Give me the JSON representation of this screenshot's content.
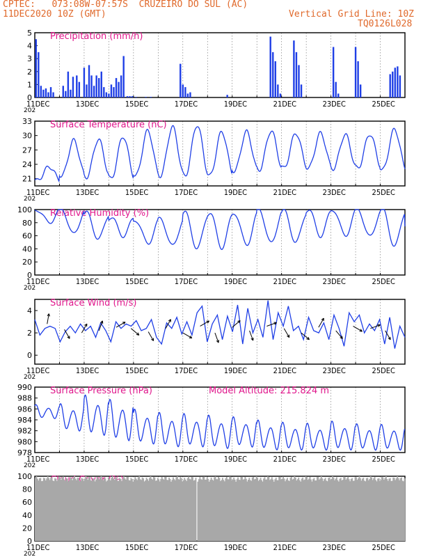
{
  "header": {
    "line1_left": "CPTEC:   073:08W-07:57S  CRUZEIRO DO SUL (AC)",
    "line2_left": "11DEC2020 10Z (GMT)",
    "line1_right": "Vertical Grid Line: 10Z",
    "line2_right": "TQ0126L028"
  },
  "colors": {
    "header": "#e0692b",
    "title": "#e0178c",
    "series": "#1f3fe6",
    "bar": "#1f3fe6",
    "cloud": "#a8a8a8",
    "arrow": "#000000"
  },
  "x_axis": {
    "day_ticks": [
      "11DEC",
      "13DEC",
      "15DEC",
      "17DEC",
      "19DEC",
      "21DEC",
      "23DEC",
      "25DEC"
    ],
    "year_fragment": "202",
    "range_days": [
      0,
      15
    ]
  },
  "chart_data": [
    {
      "id": "precip",
      "type": "bar",
      "title": "Precipitation (mm/h)",
      "ylim": [
        0,
        5
      ],
      "yticks": [
        "0",
        "1",
        "2",
        "3",
        "4",
        "5"
      ],
      "x_days": [
        0.05,
        0.15,
        0.25,
        0.35,
        0.45,
        0.55,
        0.65,
        0.75,
        1.15,
        1.25,
        1.35,
        1.45,
        1.55,
        1.7,
        1.8,
        2.0,
        2.1,
        2.2,
        2.3,
        2.4,
        2.5,
        2.6,
        2.7,
        2.8,
        2.9,
        3.0,
        3.1,
        3.2,
        3.3,
        3.4,
        3.5,
        3.6,
        3.75,
        3.85,
        3.95,
        4.1,
        4.5,
        4.7,
        5.9,
        6.0,
        6.1,
        6.2,
        6.3,
        7.8,
        9.55,
        9.65,
        9.75,
        9.85,
        9.95,
        10.5,
        10.6,
        10.7,
        10.8,
        12.1,
        12.2,
        12.3,
        13.0,
        13.1,
        13.2,
        14.4,
        14.5,
        14.6,
        14.7,
        14.8
      ],
      "values": [
        4.5,
        3.5,
        0.9,
        0.6,
        0.7,
        0.4,
        0.8,
        0.4,
        0.9,
        0.5,
        2.0,
        0.6,
        1.6,
        1.7,
        1.2,
        2.3,
        1.0,
        2.5,
        1.7,
        0.9,
        1.7,
        1.5,
        2.0,
        0.8,
        0.4,
        0.3,
        1.0,
        0.8,
        1.5,
        1.2,
        1.7,
        3.2,
        0.1,
        0.1,
        0.1,
        0.05,
        0.05,
        0.05,
        2.6,
        1.0,
        0.8,
        0.3,
        0.4,
        0.2,
        4.7,
        3.5,
        2.8,
        1.0,
        0.3,
        4.4,
        3.5,
        2.5,
        1.0,
        3.9,
        1.2,
        0.3,
        3.9,
        2.8,
        1.0,
        1.8,
        2.0,
        2.3,
        2.4,
        1.7
      ]
    },
    {
      "id": "temp",
      "type": "line",
      "title": "Surface Temperature (nC)",
      "ylim": [
        19.5,
        33
      ],
      "yticks": [
        "21",
        "24",
        "27",
        "30",
        "33"
      ],
      "daily_min": [
        20.6,
        21.6,
        21.3,
        21.0,
        21.6,
        21.6,
        21.6,
        21.6,
        22.6,
        22.8,
        23.2,
        23.2,
        23.1,
        23.2,
        22.8,
        22.9
      ],
      "daily_max": [
        23.5,
        29.0,
        29.2,
        29.8,
        31.0,
        31.8,
        32.2,
        30.8,
        30.8,
        31.0,
        30.5,
        30.5,
        30.2,
        30.3,
        31.3,
        29.8
      ],
      "values_x": [],
      "values_y": []
    },
    {
      "id": "rh",
      "type": "line",
      "title": "Relative Humidity (%)",
      "ylim": [
        0,
        100
      ],
      "yticks": [
        "0",
        "20",
        "40",
        "60",
        "80",
        "100"
      ],
      "daily_min": [
        80,
        62,
        55,
        60,
        48,
        44,
        40,
        42,
        46,
        48,
        50,
        60,
        60,
        58,
        44,
        62
      ],
      "daily_max": [
        100,
        100,
        95,
        88,
        84,
        86,
        95,
        95,
        95,
        100,
        98,
        100,
        100,
        100,
        100,
        78
      ]
    },
    {
      "id": "wind",
      "type": "line",
      "title": "Surface Wind (m/s)",
      "ylim": [
        -0.8,
        5
      ],
      "yticks": [
        "0",
        "2",
        "4"
      ],
      "speeds": [
        3.2,
        1.8,
        2.4,
        2.6,
        2.4,
        1.2,
        2.1,
        2.6,
        2.0,
        2.8,
        2.2,
        2.6,
        1.6,
        2.9,
        2.2,
        1.2,
        3.0,
        2.4,
        2.8,
        2.6,
        3.1,
        2.2,
        2.4,
        3.2,
        1.6,
        1.0,
        2.9,
        2.4,
        3.4,
        1.9,
        3.0,
        1.8,
        3.8,
        4.4,
        1.2,
        2.8,
        3.6,
        1.4,
        3.5,
        2.1,
        4.5,
        1.0,
        4.2,
        2.0,
        3.2,
        1.6,
        4.9,
        1.4,
        3.8,
        2.6,
        4.4,
        2.2,
        2.6,
        1.4,
        3.4,
        2.2,
        2.0,
        2.9,
        1.4,
        3.6,
        2.4,
        0.8,
        3.8,
        3.0,
        3.6,
        2.0,
        2.8,
        2.2,
        3.2,
        1.0,
        3.4,
        0.6,
        2.6,
        1.6
      ],
      "arrows": [
        {
          "day": 0.5,
          "speed": 2.8,
          "dir_deg": 80
        },
        {
          "day": 1.2,
          "speed": 2.3,
          "dir_deg": 300
        },
        {
          "day": 1.9,
          "speed": 2.0,
          "dir_deg": 60
        },
        {
          "day": 2.6,
          "speed": 2.2,
          "dir_deg": 70
        },
        {
          "day": 3.3,
          "speed": 2.5,
          "dir_deg": 30
        },
        {
          "day": 3.9,
          "speed": 2.4,
          "dir_deg": 320
        },
        {
          "day": 4.6,
          "speed": 2.1,
          "dir_deg": 300
        },
        {
          "day": 5.3,
          "speed": 2.4,
          "dir_deg": 60
        },
        {
          "day": 6.0,
          "speed": 2.0,
          "dir_deg": 330
        },
        {
          "day": 6.7,
          "speed": 2.6,
          "dir_deg": 30
        },
        {
          "day": 7.3,
          "speed": 2.0,
          "dir_deg": 290
        },
        {
          "day": 8.0,
          "speed": 2.5,
          "dir_deg": 40
        },
        {
          "day": 8.7,
          "speed": 2.2,
          "dir_deg": 290
        },
        {
          "day": 9.4,
          "speed": 2.6,
          "dir_deg": 20
        },
        {
          "day": 10.1,
          "speed": 2.4,
          "dir_deg": 300
        },
        {
          "day": 10.8,
          "speed": 2.0,
          "dir_deg": 320
        },
        {
          "day": 11.5,
          "speed": 2.5,
          "dir_deg": 60
        },
        {
          "day": 12.2,
          "speed": 2.2,
          "dir_deg": 310
        },
        {
          "day": 12.9,
          "speed": 2.6,
          "dir_deg": 330
        },
        {
          "day": 13.6,
          "speed": 2.4,
          "dir_deg": 20
        },
        {
          "day": 14.2,
          "speed": 2.2,
          "dir_deg": 300
        }
      ]
    },
    {
      "id": "pressure",
      "type": "line",
      "title": "Surface Pressure (hPa)",
      "annotation": "Model Altitude: 215.824 m",
      "ylim": [
        978,
        990
      ],
      "yticks": [
        "978",
        "980",
        "982",
        "984",
        "986",
        "988",
        "990"
      ],
      "daily_min": [
        984.0,
        981.5,
        980.5,
        979.5,
        979.0,
        978.5,
        978.5,
        978.2,
        978.5,
        978.0,
        978.0,
        978.0,
        978.0,
        978.0,
        978.0,
        978.8
      ],
      "daily_max": [
        986.8,
        987.0,
        988.6,
        987.8,
        986.0,
        985.4,
        985.2,
        984.9,
        984.6,
        984.0,
        983.6,
        983.4,
        983.8,
        983.3,
        983.2,
        982.6
      ]
    },
    {
      "id": "cloud",
      "type": "area",
      "title": "Cloud Cover (%)",
      "ylim": [
        0,
        100
      ],
      "yticks": [
        "0",
        "20",
        "40",
        "60",
        "80",
        "100"
      ],
      "typical_value": 96,
      "gap_day": 6.55
    }
  ]
}
